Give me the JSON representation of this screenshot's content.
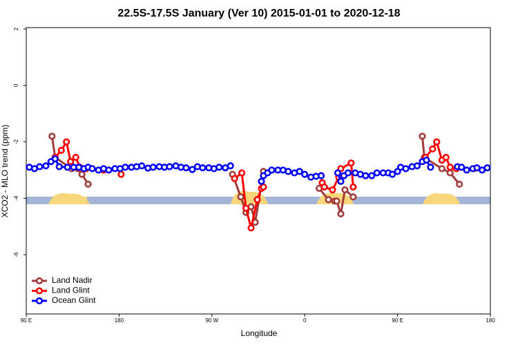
{
  "chart_data": {
    "type": "line",
    "title": "22.5S-17.5S January (Ver 10)   2015-01-01 to 2020-12-18",
    "x_label": "Longitude",
    "y_label": "XCO2 - MLO trend (ppm)",
    "xlim": [
      90,
      540
    ],
    "ylim": [
      -8.1,
      2.05
    ],
    "xticks": [
      {
        "value": 90,
        "label": "90 E"
      },
      {
        "value": 180,
        "label": "180"
      },
      {
        "value": 270,
        "label": "90 W"
      },
      {
        "value": 360,
        "label": "0"
      },
      {
        "value": 450,
        "label": "90 E"
      },
      {
        "value": 540,
        "label": "180"
      }
    ],
    "yticks": [
      2,
      0,
      -2,
      -4,
      -6
    ],
    "legend": "bottom-left",
    "series": [
      {
        "name": "Land Nadir",
        "color": "#a33a3a",
        "x": [
          115,
          118,
          134,
          140,
          144,
          150,
          null,
          290,
          298,
          303,
          308,
          312,
          320,
          null,
          374,
          383,
          389,
          391,
          395,
          399,
          407,
          null,
          474,
          476,
          493,
          501,
          510
        ],
        "values": [
          -1.8,
          -2.55,
          -2.95,
          -2.95,
          -3.15,
          -3.5,
          null,
          -3.15,
          -3.95,
          -4.5,
          -4.3,
          -4.85,
          -3.05,
          null,
          -3.65,
          -4.05,
          -4.1,
          -4.1,
          -4.55,
          -3.7,
          -3.95,
          null,
          -1.8,
          -2.55,
          -2.95,
          -3.1,
          -3.5
        ]
      },
      {
        "name": "Land Glint",
        "color": "#ff0000",
        "x": [
          118,
          124,
          129,
          133,
          138,
          142,
          148,
          null,
          165,
          null,
          182,
          null,
          292,
          299,
          303,
          308,
          314,
          318,
          320,
          null,
          377,
          379,
          387,
          393,
          395,
          405,
          407,
          null,
          477,
          484,
          488,
          493,
          497,
          501,
          507,
          null,
          524
        ],
        "values": [
          -2.55,
          -2.3,
          -2.0,
          -2.7,
          -2.55,
          -2.9,
          -2.95,
          null,
          -3.0,
          null,
          -3.15,
          null,
          -3.3,
          -3.1,
          -4.35,
          -5.05,
          -4.05,
          -3.65,
          -3.6,
          null,
          -3.45,
          -3.6,
          -3.7,
          -3.25,
          -2.95,
          -2.75,
          -3.6,
          null,
          -2.55,
          -2.25,
          -2.0,
          -2.65,
          -2.55,
          -2.9,
          -2.95,
          null,
          -2.95
        ]
      },
      {
        "name": "Ocean Glint",
        "color": "#0000ff",
        "x": [
          93,
          98,
          103,
          109,
          114,
          118,
          122,
          130,
          136,
          141,
          146,
          150,
          154,
          160,
          165,
          170,
          176,
          181,
          186,
          192,
          197,
          202,
          208,
          213,
          219,
          224,
          229,
          235,
          240,
          245,
          251,
          256,
          261,
          267,
          272,
          277,
          283,
          288,
          null,
          318,
          320,
          324,
          328,
          334,
          339,
          344,
          350,
          355,
          360,
          366,
          371,
          376,
          null,
          392,
          395,
          398,
          402,
          409,
          414,
          419,
          425,
          430,
          436,
          441,
          445,
          450,
          453,
          458,
          464,
          469,
          474,
          478,
          482,
          null,
          508,
          512,
          517,
          523,
          527,
          532,
          537
        ],
        "values": [
          -2.9,
          -2.95,
          -2.88,
          -2.85,
          -2.7,
          -2.6,
          -2.88,
          -2.9,
          -2.9,
          -2.9,
          -2.95,
          -2.9,
          -2.95,
          -3.0,
          -2.95,
          -3.0,
          -2.95,
          -2.95,
          -2.9,
          -2.9,
          -2.88,
          -2.85,
          -2.93,
          -2.9,
          -2.88,
          -2.9,
          -2.88,
          -2.85,
          -2.9,
          -2.92,
          -2.98,
          -2.88,
          -2.92,
          -2.92,
          -2.95,
          -2.9,
          -2.92,
          -2.85,
          null,
          -3.4,
          -3.2,
          -3.1,
          -3.0,
          -3.0,
          -3.0,
          -3.05,
          -3.1,
          -3.05,
          -3.15,
          -3.25,
          -3.22,
          -3.2,
          null,
          -3.1,
          -3.4,
          -3.2,
          -3.1,
          -3.1,
          -3.15,
          -3.2,
          -3.2,
          -3.1,
          -3.1,
          -3.1,
          -3.15,
          -3.05,
          -2.9,
          -2.95,
          -2.88,
          -2.85,
          -2.7,
          -2.65,
          -2.9,
          null,
          -2.88,
          -2.9,
          -3.0,
          -2.95,
          -2.92,
          -3.0,
          -2.92
        ]
      }
    ]
  }
}
